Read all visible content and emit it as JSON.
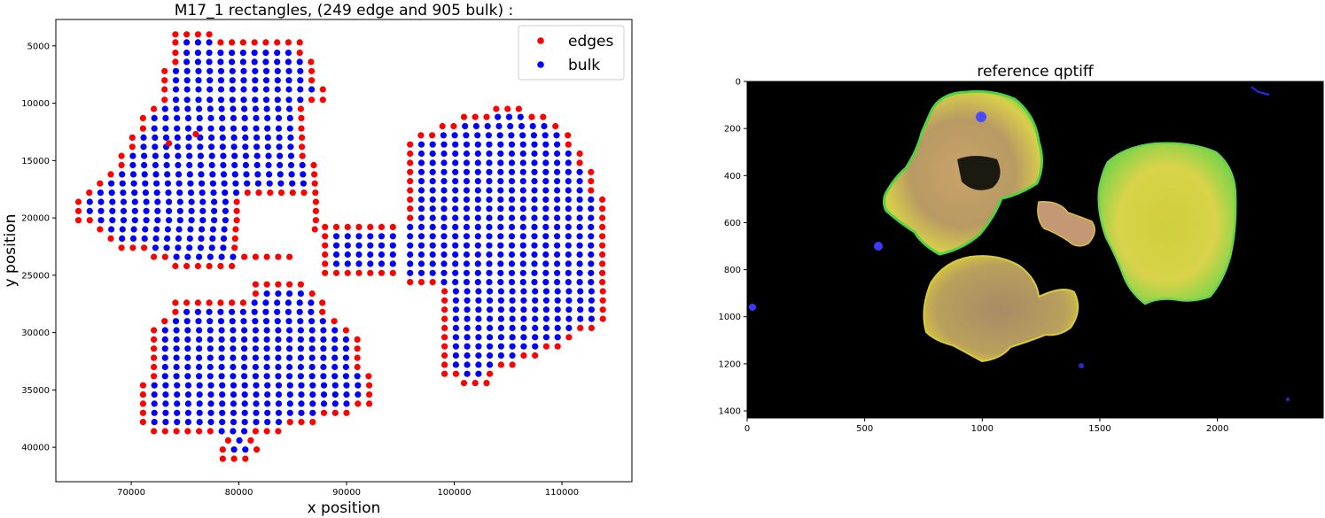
{
  "chart_data": [
    {
      "type": "scatter",
      "title": "M17_1 rectangles, (249 edge and 905 bulk) :",
      "xlabel": "x position",
      "ylabel": "y position",
      "xlim": [
        63000,
        116500
      ],
      "ylim": [
        43000,
        2700
      ],
      "y_inverted": true,
      "xticks": [
        70000,
        80000,
        90000,
        100000,
        110000
      ],
      "xtick_labels": [
        "70000",
        "80000",
        "90000",
        "100000",
        "110000"
      ],
      "yticks": [
        5000,
        10000,
        15000,
        20000,
        25000,
        30000,
        35000,
        40000
      ],
      "ytick_labels": [
        "5000",
        "10000",
        "15000",
        "20000",
        "25000",
        "30000",
        "35000",
        "40000"
      ],
      "grid_step": 1050,
      "legend_position": "top-right",
      "series": [
        {
          "name": "edges",
          "color": "#ff0000",
          "count": 249
        },
        {
          "name": "bulk",
          "color": "#0000ff",
          "count": 905
        }
      ],
      "lobes": {
        "upper_left": {
          "rows": [
            [
              4000,
              74100,
              77500
            ],
            [
              4700,
              74100,
              86500
            ],
            [
              5600,
              74100,
              86500
            ],
            [
              6400,
              74100,
              87000
            ],
            [
              7200,
              73100,
              87000
            ],
            [
              8000,
              73100,
              87500
            ],
            [
              8800,
              73100,
              88000
            ],
            [
              9700,
              73100,
              88000
            ],
            [
              10500,
              72100,
              86500
            ],
            [
              11300,
              71100,
              86500
            ],
            [
              12200,
              71100,
              86500
            ],
            [
              13000,
              70100,
              86500
            ],
            [
              13800,
              70100,
              86500
            ],
            [
              14600,
              69100,
              86500
            ],
            [
              15400,
              69100,
              87500
            ],
            [
              16200,
              68100,
              87500
            ],
            [
              17000,
              67100,
              87500
            ],
            [
              17800,
              66100,
              87500
            ],
            [
              18600,
              65100,
              88000
            ],
            [
              19400,
              65100,
              88000
            ],
            [
              20200,
              65100,
              88000
            ],
            [
              21000,
              67100,
              87500
            ],
            [
              21800,
              68100,
              87000
            ],
            [
              22600,
              69100,
              86500
            ],
            [
              23400,
              72100,
              85500
            ],
            [
              24200,
              74100,
              79500
            ]
          ],
          "notch": {
            "x": [
              80500,
              87000
            ],
            "y": [
              18500,
              23000
            ]
          },
          "specks": [
            [
              76000,
              12700
            ],
            [
              73500,
              13500
            ]
          ]
        },
        "lower_left": {
          "rows": [
            [
              25000,
              74100,
              75000
            ],
            [
              25800,
              72100,
              86000
            ],
            [
              26600,
              72100,
              87000
            ],
            [
              27400,
              74100,
              88000
            ],
            [
              28200,
              74100,
              88500
            ],
            [
              29000,
              73100,
              89000
            ],
            [
              29800,
              72100,
              90000
            ],
            [
              30600,
              72100,
              91000
            ],
            [
              31400,
              72100,
              91000
            ],
            [
              32200,
              72100,
              91500
            ],
            [
              33000,
              72100,
              91500
            ],
            [
              33800,
              72100,
              92500
            ],
            [
              34600,
              71100,
              92500
            ],
            [
              35400,
              71100,
              92500
            ],
            [
              36200,
              71100,
              92500
            ],
            [
              37000,
              71100,
              90000
            ],
            [
              37800,
              71100,
              87000
            ],
            [
              38600,
              72100,
              84000
            ],
            [
              39400,
              79000,
              82000
            ],
            [
              40200,
              78500,
              82000
            ],
            [
              41000,
              78500,
              81000
            ]
          ],
          "notch": {
            "x": [
              72000,
              81000
            ],
            "y": [
              24800,
              27200
            ]
          }
        },
        "right": {
          "rows": [
            [
              10500,
              103900,
              106000
            ],
            [
              11200,
              100900,
              109000
            ],
            [
              12000,
              98900,
              110000
            ],
            [
              12800,
              96900,
              111000
            ],
            [
              13600,
              95900,
              111500
            ],
            [
              14400,
              95900,
              112000
            ],
            [
              15200,
              95900,
              112500
            ],
            [
              16000,
              95900,
              113000
            ],
            [
              16800,
              95900,
              113000
            ],
            [
              17600,
              95900,
              113500
            ],
            [
              18400,
              95900,
              114000
            ],
            [
              19200,
              95900,
              114000
            ],
            [
              20000,
              95900,
              114000
            ],
            [
              20800,
              95900,
              114000
            ],
            [
              21600,
              95900,
              114000
            ],
            [
              22400,
              95900,
              114000
            ],
            [
              23200,
              95900,
              114000
            ],
            [
              24000,
              95900,
              114000
            ],
            [
              24800,
              95900,
              114000
            ],
            [
              25600,
              95900,
              114000
            ],
            [
              26400,
              99100,
              114000
            ],
            [
              27200,
              99100,
              114000
            ],
            [
              28000,
              99100,
              114000
            ],
            [
              28800,
              99100,
              114000
            ],
            [
              29600,
              99100,
              113000
            ],
            [
              30400,
              99100,
              111000
            ],
            [
              31200,
              99100,
              110000
            ],
            [
              32000,
              99100,
              108000
            ],
            [
              32800,
              99100,
              106000
            ],
            [
              33600,
              99100,
              104000
            ],
            [
              34400,
              100900,
              103000
            ]
          ],
          "bridge": {
            "x": [
              88000,
              96000
            ],
            "y": [
              20800,
              25000
            ]
          }
        }
      }
    },
    {
      "type": "image",
      "title": "reference qptiff",
      "xlim": [
        0,
        2450
      ],
      "ylim": [
        1430,
        0
      ],
      "xticks": [
        0,
        500,
        1000,
        1500,
        2000
      ],
      "xtick_labels": [
        "0",
        "500",
        "1000",
        "1500",
        "2000"
      ],
      "yticks": [
        0,
        200,
        400,
        600,
        800,
        1000,
        1200,
        1400
      ],
      "ytick_labels": [
        "0",
        "200",
        "400",
        "600",
        "800",
        "1000",
        "1200",
        "1400"
      ]
    }
  ]
}
